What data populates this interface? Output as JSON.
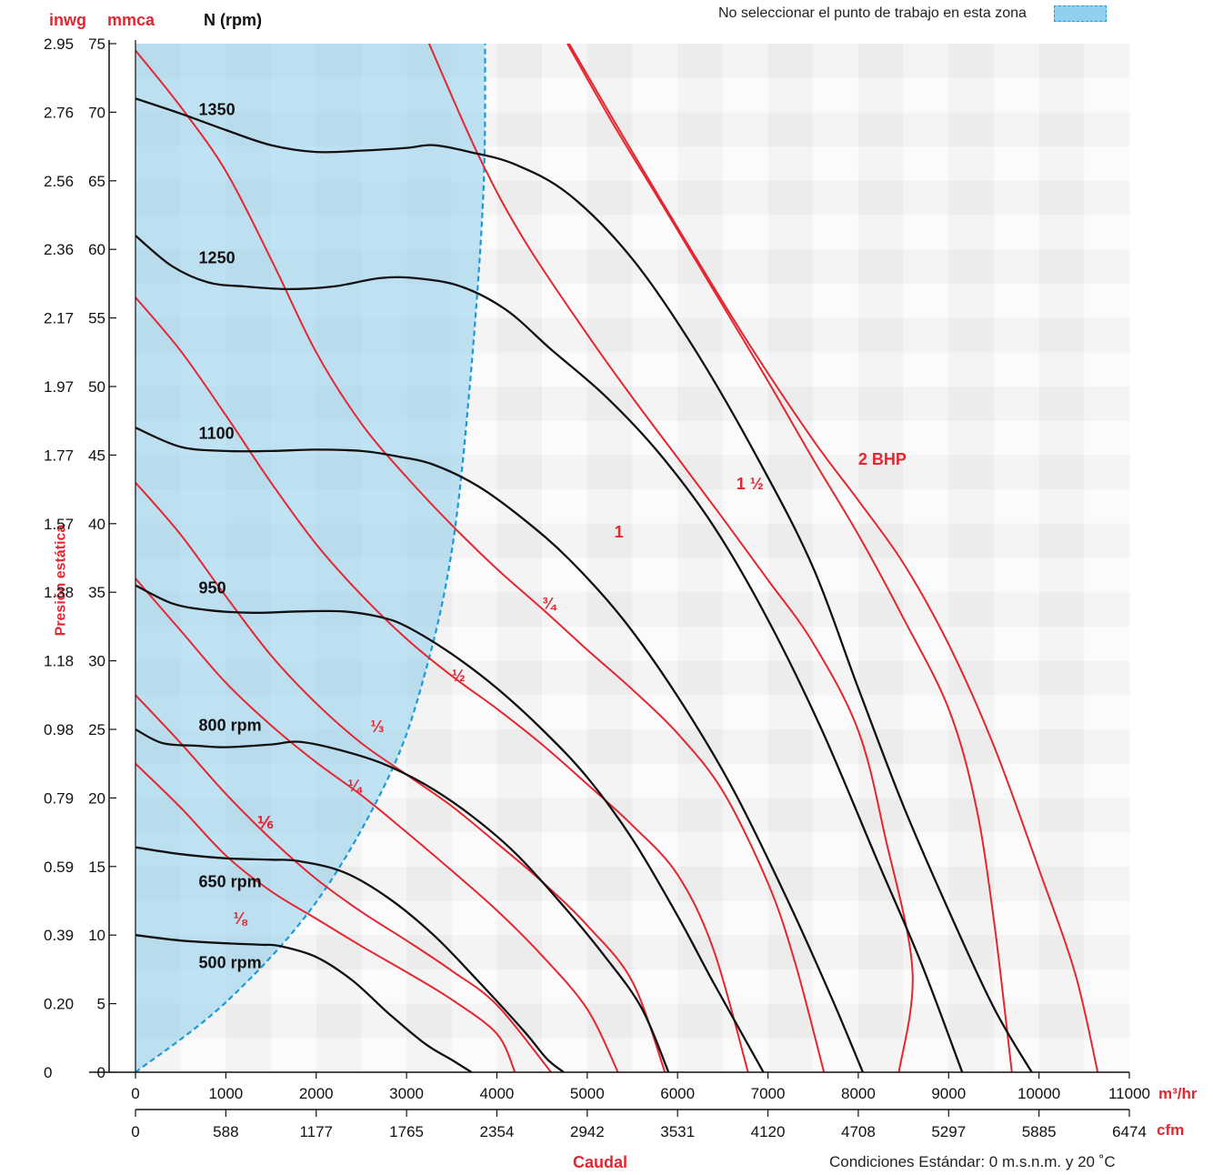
{
  "header": {
    "inwg": "inwg",
    "mmca": "mmca",
    "rpm_title": "N (rpm)",
    "legend_note": "No seleccionar el punto de trabajo en esta zona",
    "ylabel": "Presión estática",
    "xlabel": "Caudal",
    "conditions": "Condiciones Estándar: 0 m.s.n.m. y 20 ˚C",
    "unit_m3": "m³/hr",
    "unit_cfm": "cfm"
  },
  "colors": {
    "red": "#e52630",
    "black": "#111111",
    "zone_fill": "#8fd0ee",
    "zone_edge": "#1a9ad8"
  },
  "chart_data": {
    "type": "line",
    "x_unit": "m³/hr",
    "y_unit": "mmca",
    "xlim": [
      0,
      11000
    ],
    "ylim": [
      0,
      75
    ],
    "x_ticks_m3hr": [
      "0",
      "1000",
      "2000",
      "3000",
      "4000",
      "5000",
      "6000",
      "7000",
      "8000",
      "9000",
      "10000",
      "11000"
    ],
    "x_ticks_cfm": [
      "0",
      "588",
      "1177",
      "1765",
      "2354",
      "2942",
      "3531",
      "4120",
      "4708",
      "5297",
      "5885",
      "6474"
    ],
    "y_ticks_mmca": [
      "0",
      "5",
      "10",
      "15",
      "20",
      "25",
      "30",
      "35",
      "40",
      "45",
      "50",
      "55",
      "60",
      "65",
      "70",
      "75"
    ],
    "y_ticks_inwg": [
      "0",
      "0.20",
      "0.39",
      "0.59",
      "0.79",
      "0.98",
      "1.18",
      "1.38",
      "1.57",
      "1.77",
      "1.97",
      "2.17",
      "2.36",
      "2.56",
      "2.76",
      "2.95"
    ],
    "grid": true,
    "rpm_curves": [
      {
        "name": "500 rpm",
        "points": [
          [
            0,
            10
          ],
          [
            500,
            9.6
          ],
          [
            1000,
            9.4
          ],
          [
            1400,
            9.3
          ],
          [
            1600,
            9.2
          ],
          [
            2000,
            8.4
          ],
          [
            2400,
            6.7
          ],
          [
            2800,
            4.3
          ],
          [
            3200,
            2.1
          ],
          [
            3500,
            0.9
          ],
          [
            3720,
            0
          ]
        ]
      },
      {
        "name": "650 rpm",
        "points": [
          [
            0,
            16.4
          ],
          [
            500,
            15.9
          ],
          [
            1000,
            15.6
          ],
          [
            1500,
            15.5
          ],
          [
            1800,
            15.4
          ],
          [
            2300,
            14.6
          ],
          [
            2800,
            12.7
          ],
          [
            3300,
            10.0
          ],
          [
            3800,
            6.6
          ],
          [
            4300,
            3.0
          ],
          [
            4550,
            1.0
          ],
          [
            4740,
            0
          ]
        ]
      },
      {
        "name": "800 rpm",
        "points": [
          [
            0,
            25
          ],
          [
            300,
            24.0
          ],
          [
            700,
            23.8
          ],
          [
            1000,
            23.7
          ],
          [
            1500,
            23.9
          ],
          [
            1800,
            24.1
          ],
          [
            2200,
            23.6
          ],
          [
            2700,
            22.6
          ],
          [
            3200,
            21.0
          ],
          [
            3700,
            18.8
          ],
          [
            4200,
            16.0
          ],
          [
            4700,
            12.4
          ],
          [
            5200,
            8.4
          ],
          [
            5600,
            4.7
          ],
          [
            5900,
            0
          ]
        ]
      },
      {
        "name": "950 rpm",
        "points": [
          [
            0,
            35.5
          ],
          [
            400,
            34.2
          ],
          [
            800,
            33.7
          ],
          [
            1300,
            33.5
          ],
          [
            1800,
            33.6
          ],
          [
            2300,
            33.6
          ],
          [
            2700,
            33.2
          ],
          [
            3000,
            32.5
          ],
          [
            3500,
            30.5
          ],
          [
            4000,
            28.0
          ],
          [
            4500,
            25.0
          ],
          [
            5000,
            21.5
          ],
          [
            5500,
            17.0
          ],
          [
            6000,
            11.4
          ],
          [
            6400,
            6.5
          ],
          [
            6950,
            0
          ]
        ]
      },
      {
        "name": "1100 rpm",
        "points": [
          [
            0,
            47
          ],
          [
            500,
            45.6
          ],
          [
            1000,
            45.3
          ],
          [
            1500,
            45.3
          ],
          [
            2000,
            45.4
          ],
          [
            2500,
            45.3
          ],
          [
            2900,
            44.9
          ],
          [
            3300,
            44.3
          ],
          [
            3800,
            42.7
          ],
          [
            4300,
            40.3
          ],
          [
            4800,
            37.4
          ],
          [
            5400,
            33.0
          ],
          [
            6000,
            27.4
          ],
          [
            6600,
            20.8
          ],
          [
            7200,
            12.8
          ],
          [
            7700,
            5.5
          ],
          [
            8050,
            0
          ]
        ]
      },
      {
        "name": "1250 rpm",
        "points": [
          [
            0,
            61
          ],
          [
            400,
            58.8
          ],
          [
            800,
            57.6
          ],
          [
            1200,
            57.3
          ],
          [
            1700,
            57.1
          ],
          [
            2200,
            57.3
          ],
          [
            2700,
            57.9
          ],
          [
            3100,
            57.9
          ],
          [
            3600,
            57.3
          ],
          [
            4100,
            55.6
          ],
          [
            4600,
            52.7
          ],
          [
            5200,
            49.3
          ],
          [
            5800,
            45.1
          ],
          [
            6400,
            39.8
          ],
          [
            7000,
            33.0
          ],
          [
            7600,
            24.9
          ],
          [
            8200,
            15.6
          ],
          [
            8700,
            7.9
          ],
          [
            9150,
            0
          ]
        ]
      },
      {
        "name": "1350 rpm",
        "points": [
          [
            0,
            71
          ],
          [
            500,
            69.9
          ],
          [
            1000,
            68.7
          ],
          [
            1500,
            67.6
          ],
          [
            2000,
            67.1
          ],
          [
            2500,
            67.2
          ],
          [
            3000,
            67.4
          ],
          [
            3300,
            67.6
          ],
          [
            3700,
            67.1
          ],
          [
            4200,
            66.2
          ],
          [
            4800,
            64.0
          ],
          [
            5500,
            59.3
          ],
          [
            6200,
            52.6
          ],
          [
            6900,
            44.6
          ],
          [
            7500,
            36.8
          ],
          [
            8000,
            28.0
          ],
          [
            8500,
            19.4
          ],
          [
            9000,
            11.8
          ],
          [
            9500,
            4.7
          ],
          [
            9920,
            0
          ]
        ]
      }
    ],
    "power_curves": [
      {
        "name": "1/8",
        "label": "⅛",
        "points": [
          [
            0,
            22.5
          ],
          [
            500,
            19.3
          ],
          [
            1000,
            15.8
          ],
          [
            1500,
            13.2
          ],
          [
            2000,
            11.2
          ],
          [
            2500,
            9.2
          ],
          [
            3000,
            7.3
          ],
          [
            3500,
            5.3
          ],
          [
            4000,
            2.8
          ],
          [
            4200,
            0
          ]
        ]
      },
      {
        "name": "1/6",
        "label": "⅙",
        "points": [
          [
            0,
            27.5
          ],
          [
            500,
            24.0
          ],
          [
            1000,
            20.3
          ],
          [
            1500,
            17.0
          ],
          [
            2000,
            14.1
          ],
          [
            2500,
            11.7
          ],
          [
            3000,
            9.6
          ],
          [
            3500,
            7.4
          ],
          [
            4000,
            4.9
          ],
          [
            4600,
            0
          ]
        ]
      },
      {
        "name": "1/4",
        "label": "¼",
        "points": [
          [
            0,
            36
          ],
          [
            500,
            32.2
          ],
          [
            1000,
            28.4
          ],
          [
            1500,
            25.3
          ],
          [
            2000,
            22.6
          ],
          [
            2500,
            20.2
          ],
          [
            3000,
            17.5
          ],
          [
            3500,
            14.7
          ],
          [
            4000,
            11.8
          ],
          [
            4500,
            8.5
          ],
          [
            5000,
            4.6
          ],
          [
            5340,
            0
          ]
        ]
      },
      {
        "name": "1/3",
        "label": "⅓",
        "points": [
          [
            0,
            43
          ],
          [
            500,
            39.2
          ],
          [
            1000,
            34.7
          ],
          [
            1500,
            30.4
          ],
          [
            2000,
            26.9
          ],
          [
            2500,
            24.0
          ],
          [
            3000,
            21.7
          ],
          [
            3500,
            19.4
          ],
          [
            4000,
            16.7
          ],
          [
            4500,
            13.9
          ],
          [
            5000,
            10.7
          ],
          [
            5500,
            6.6
          ],
          [
            5860,
            0
          ]
        ]
      },
      {
        "name": "1/2",
        "label": "½",
        "points": [
          [
            0,
            56.5
          ],
          [
            500,
            52.6
          ],
          [
            1000,
            47.9
          ],
          [
            1500,
            43.0
          ],
          [
            2000,
            38.5
          ],
          [
            2500,
            34.8
          ],
          [
            3000,
            31.6
          ],
          [
            3500,
            28.9
          ],
          [
            4000,
            26.5
          ],
          [
            4500,
            23.9
          ],
          [
            5000,
            21.0
          ],
          [
            5500,
            18.0
          ],
          [
            6000,
            14.4
          ],
          [
            6400,
            8.9
          ],
          [
            6780,
            0
          ]
        ]
      },
      {
        "name": "3/4",
        "label": "¾",
        "points": [
          [
            0,
            74.5
          ],
          [
            500,
            70.4
          ],
          [
            1000,
            65.7
          ],
          [
            1500,
            59.3
          ],
          [
            2000,
            52.5
          ],
          [
            2500,
            47.3
          ],
          [
            3000,
            43.4
          ],
          [
            3500,
            39.9
          ],
          [
            4000,
            36.7
          ],
          [
            4500,
            33.8
          ],
          [
            5000,
            30.8
          ],
          [
            5500,
            27.9
          ],
          [
            6000,
            24.7
          ],
          [
            6500,
            20.5
          ],
          [
            7000,
            13.8
          ],
          [
            7300,
            8.0
          ],
          [
            7620,
            0
          ]
        ]
      },
      {
        "name": "1",
        "label": "1",
        "points": [
          [
            3250,
            75
          ],
          [
            3800,
            66.8
          ],
          [
            4300,
            60.7
          ],
          [
            5000,
            53.8
          ],
          [
            5500,
            49.2
          ],
          [
            6000,
            44.8
          ],
          [
            6500,
            40.4
          ],
          [
            7000,
            35.9
          ],
          [
            7500,
            31.3
          ],
          [
            8000,
            24.9
          ],
          [
            8300,
            17.1
          ],
          [
            8600,
            7.4
          ],
          [
            8450,
            0
          ]
        ]
      },
      {
        "name": "1 1/2",
        "label": "1 ½",
        "points": [
          [
            4780,
            75
          ],
          [
            5300,
            69.0
          ],
          [
            5900,
            62.5
          ],
          [
            6500,
            55.9
          ],
          [
            7000,
            50.4
          ],
          [
            7500,
            44.7
          ],
          [
            8000,
            39.2
          ],
          [
            8500,
            33.1
          ],
          [
            9000,
            26.5
          ],
          [
            9300,
            19.5
          ],
          [
            9500,
            11.1
          ],
          [
            9700,
            0
          ]
        ]
      },
      {
        "name": "2 BHP",
        "label": "2 BHP",
        "points": [
          [
            4800,
            75
          ],
          [
            5400,
            68.2
          ],
          [
            6100,
            60.5
          ],
          [
            6800,
            53.0
          ],
          [
            7500,
            46.1
          ],
          [
            8000,
            41.7
          ],
          [
            8500,
            37.1
          ],
          [
            9000,
            31.2
          ],
          [
            9500,
            23.8
          ],
          [
            10000,
            14.8
          ],
          [
            10400,
            7.2
          ],
          [
            10650,
            0
          ]
        ]
      }
    ],
    "exclusion_zone": {
      "boundary": [
        [
          0,
          0
        ],
        [
          1000,
          5.1
        ],
        [
          2000,
          12.4
        ],
        [
          2800,
          21.5
        ],
        [
          3200,
          29.0
        ],
        [
          3500,
          38.0
        ],
        [
          3700,
          50.0
        ],
        [
          3850,
          64.0
        ],
        [
          3870,
          75
        ]
      ]
    }
  }
}
